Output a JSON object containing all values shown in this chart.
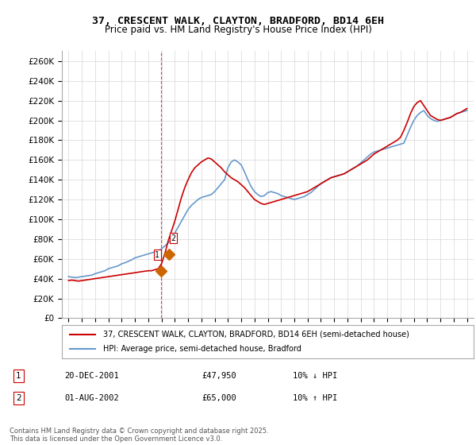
{
  "title": "37, CRESCENT WALK, CLAYTON, BRADFORD, BD14 6EH",
  "subtitle": "Price paid vs. HM Land Registry's House Price Index (HPI)",
  "legend_line1": "37, CRESCENT WALK, CLAYTON, BRADFORD, BD14 6EH (semi-detached house)",
  "legend_line2": "HPI: Average price, semi-detached house, Bradford",
  "footer": "Contains HM Land Registry data © Crown copyright and database right 2025.\nThis data is licensed under the Open Government Licence v3.0.",
  "transaction1_label": "1",
  "transaction1_date": "20-DEC-2001",
  "transaction1_price": "£47,950",
  "transaction1_hpi": "10% ↓ HPI",
  "transaction2_label": "2",
  "transaction2_date": "01-AUG-2002",
  "transaction2_price": "£65,000",
  "transaction2_hpi": "10% ↑ HPI",
  "hpi_color": "#6699cc",
  "price_color": "#cc0000",
  "dashed_line_color": "#cc0000",
  "marker1_color": "#cc6600",
  "marker2_color": "#cc6600",
  "background_color": "#ffffff",
  "grid_color": "#dddddd",
  "ylim": [
    0,
    270000
  ],
  "yticks": [
    0,
    20000,
    40000,
    60000,
    80000,
    100000,
    120000,
    140000,
    160000,
    180000,
    200000,
    220000,
    240000,
    260000
  ],
  "ytick_labels": [
    "£0",
    "£20K",
    "£40K",
    "£60K",
    "£80K",
    "£100K",
    "£120K",
    "£140K",
    "£160K",
    "£180K",
    "£200K",
    "£220K",
    "£240K",
    "£260K"
  ],
  "xlim_start": 1994.5,
  "xlim_end": 2025.5,
  "xticks": [
    1995,
    1996,
    1997,
    1998,
    1999,
    2000,
    2001,
    2002,
    2003,
    2004,
    2005,
    2006,
    2007,
    2008,
    2009,
    2010,
    2011,
    2012,
    2013,
    2014,
    2015,
    2016,
    2017,
    2018,
    2019,
    2020,
    2021,
    2022,
    2023,
    2024,
    2025
  ],
  "transaction1_x": 2001.97,
  "transaction1_y": 47950,
  "transaction2_x": 2002.58,
  "transaction2_y": 65000,
  "hpi_x": [
    1995,
    1995.25,
    1995.5,
    1995.75,
    1996,
    1996.25,
    1996.5,
    1996.75,
    1997,
    1997.25,
    1997.5,
    1997.75,
    1998,
    1998.25,
    1998.5,
    1998.75,
    1999,
    1999.25,
    1999.5,
    1999.75,
    2000,
    2000.25,
    2000.5,
    2000.75,
    2001,
    2001.25,
    2001.5,
    2001.75,
    2002,
    2002.25,
    2002.5,
    2002.75,
    2003,
    2003.25,
    2003.5,
    2003.75,
    2004,
    2004.25,
    2004.5,
    2004.75,
    2005,
    2005.25,
    2005.5,
    2005.75,
    2006,
    2006.25,
    2006.5,
    2006.75,
    2007,
    2007.25,
    2007.5,
    2007.75,
    2008,
    2008.25,
    2008.5,
    2008.75,
    2009,
    2009.25,
    2009.5,
    2009.75,
    2010,
    2010.25,
    2010.5,
    2010.75,
    2011,
    2011.25,
    2011.5,
    2011.75,
    2012,
    2012.25,
    2012.5,
    2012.75,
    2013,
    2013.25,
    2013.5,
    2013.75,
    2014,
    2014.25,
    2014.5,
    2014.75,
    2015,
    2015.25,
    2015.5,
    2015.75,
    2016,
    2016.25,
    2016.5,
    2016.75,
    2017,
    2017.25,
    2017.5,
    2017.75,
    2018,
    2018.25,
    2018.5,
    2018.75,
    2019,
    2019.25,
    2019.5,
    2019.75,
    2020,
    2020.25,
    2020.5,
    2020.75,
    2021,
    2021.25,
    2021.5,
    2021.75,
    2022,
    2022.25,
    2022.5,
    2022.75,
    2023,
    2023.25,
    2023.5,
    2023.75,
    2024,
    2024.25,
    2024.5,
    2024.75,
    2025
  ],
  "hpi_y": [
    42000,
    41500,
    41000,
    41500,
    42000,
    42500,
    43000,
    43500,
    45000,
    46000,
    47000,
    48000,
    50000,
    51000,
    52000,
    53000,
    55000,
    56000,
    57500,
    59000,
    61000,
    62000,
    63000,
    64000,
    65000,
    66000,
    67000,
    68000,
    70000,
    73000,
    76000,
    80000,
    86000,
    92000,
    98000,
    104000,
    110000,
    114000,
    117000,
    120000,
    122000,
    123000,
    124000,
    125000,
    128000,
    132000,
    136000,
    140000,
    152000,
    158000,
    160000,
    158000,
    155000,
    148000,
    140000,
    133000,
    128000,
    125000,
    123000,
    124000,
    127000,
    128000,
    127000,
    126000,
    124000,
    123000,
    122000,
    121000,
    120000,
    121000,
    122000,
    123000,
    125000,
    127000,
    130000,
    133000,
    136000,
    138000,
    140000,
    142000,
    143000,
    144000,
    145000,
    146000,
    148000,
    150000,
    152000,
    154000,
    157000,
    160000,
    163000,
    166000,
    168000,
    169000,
    170000,
    171000,
    172000,
    173000,
    174000,
    175000,
    176000,
    177000,
    185000,
    193000,
    200000,
    205000,
    208000,
    210000,
    205000,
    202000,
    200000,
    199000,
    200000,
    201000,
    202000,
    203000,
    205000,
    207000,
    208000,
    209000,
    210000
  ],
  "price_x": [
    1995,
    1995.25,
    1995.5,
    1995.75,
    1996,
    1996.25,
    1996.5,
    1996.75,
    1997,
    1997.25,
    1997.5,
    1997.75,
    1998,
    1998.25,
    1998.5,
    1998.75,
    1999,
    1999.25,
    1999.5,
    1999.75,
    2000,
    2000.25,
    2000.5,
    2000.75,
    2001,
    2001.25,
    2001.5,
    2001.75,
    2002,
    2002.25,
    2002.5,
    2002.75,
    2003,
    2003.25,
    2003.5,
    2003.75,
    2004,
    2004.25,
    2004.5,
    2004.75,
    2005,
    2005.25,
    2005.5,
    2005.75,
    2006,
    2006.25,
    2006.5,
    2006.75,
    2007,
    2007.25,
    2007.5,
    2007.75,
    2008,
    2008.25,
    2008.5,
    2008.75,
    2009,
    2009.25,
    2009.5,
    2009.75,
    2010,
    2010.25,
    2010.5,
    2010.75,
    2011,
    2011.25,
    2011.5,
    2011.75,
    2012,
    2012.25,
    2012.5,
    2012.75,
    2013,
    2013.25,
    2013.5,
    2013.75,
    2014,
    2014.25,
    2014.5,
    2014.75,
    2015,
    2015.25,
    2015.5,
    2015.75,
    2016,
    2016.25,
    2016.5,
    2016.75,
    2017,
    2017.25,
    2017.5,
    2017.75,
    2018,
    2018.25,
    2018.5,
    2018.75,
    2019,
    2019.25,
    2019.5,
    2019.75,
    2020,
    2020.25,
    2020.5,
    2020.75,
    2021,
    2021.25,
    2021.5,
    2021.75,
    2022,
    2022.25,
    2022.5,
    2022.75,
    2023,
    2023.25,
    2023.5,
    2023.75,
    2024,
    2024.25,
    2024.5,
    2024.75,
    2025
  ],
  "price_y": [
    38000,
    38500,
    38000,
    37500,
    38000,
    38500,
    39000,
    39500,
    40000,
    40500,
    41000,
    41500,
    42000,
    42500,
    43000,
    43500,
    44000,
    44500,
    45000,
    45500,
    46000,
    46500,
    47000,
    47500,
    47950,
    48000,
    49000,
    50000,
    55000,
    65000,
    78000,
    88000,
    98000,
    110000,
    122000,
    132000,
    140000,
    147000,
    152000,
    155000,
    158000,
    160000,
    162000,
    161000,
    158000,
    155000,
    152000,
    148000,
    145000,
    142000,
    140000,
    138000,
    135000,
    132000,
    128000,
    124000,
    120000,
    118000,
    116000,
    115000,
    116000,
    117000,
    118000,
    119000,
    120000,
    121000,
    122000,
    123000,
    124000,
    125000,
    126000,
    127000,
    128000,
    130000,
    132000,
    134000,
    136000,
    138000,
    140000,
    142000,
    143000,
    144000,
    145000,
    146000,
    148000,
    150000,
    152000,
    154000,
    156000,
    158000,
    160000,
    163000,
    166000,
    168000,
    170000,
    172000,
    174000,
    176000,
    178000,
    180000,
    183000,
    190000,
    198000,
    207000,
    214000,
    218000,
    220000,
    215000,
    210000,
    205000,
    203000,
    201000,
    200000,
    201000,
    202000,
    203000,
    205000,
    207000,
    208000,
    210000,
    212000
  ]
}
